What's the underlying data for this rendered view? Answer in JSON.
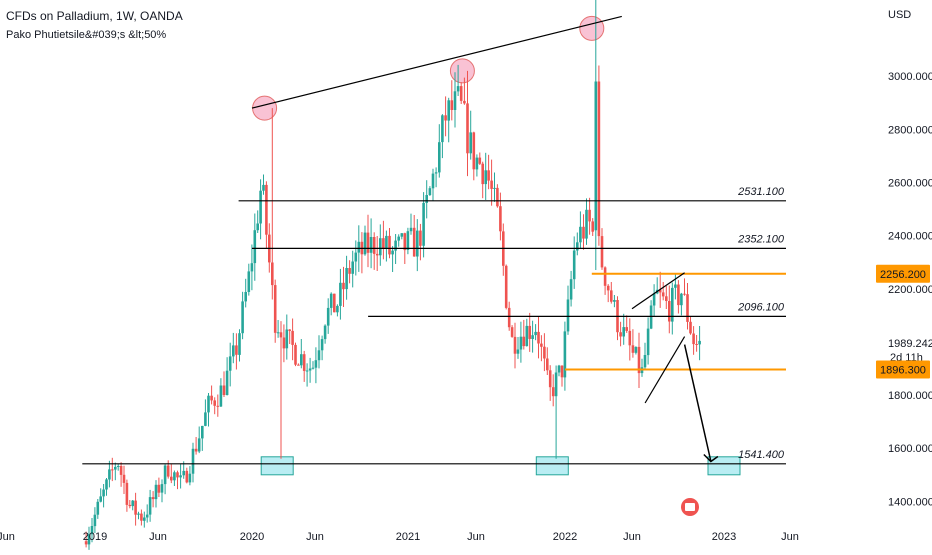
{
  "header": {
    "title": "CFDs on Palladium, 1W, OANDA",
    "subtitle": "Pako Phutietsile&#039;s &lt;50%"
  },
  "price_axis": {
    "currency": "USD",
    "ticks": [
      "3000.000",
      "2800.000",
      "2600.000",
      "2400.000",
      "2200.000",
      "1800.000",
      "1600.000",
      "1400.000"
    ],
    "tick_values": [
      3000,
      2800,
      2600,
      2400,
      2200,
      1800,
      1600,
      1400
    ],
    "current_price": "1989.242",
    "countdown": "2d 11h",
    "badges": [
      {
        "label": "2256.200",
        "value": 2256.2,
        "color": "#ff9800"
      },
      {
        "label": "1896.300",
        "value": 1896.3,
        "color": "#ff9800"
      }
    ]
  },
  "time_axis": {
    "labels": [
      "Jun",
      "2019",
      "Jun",
      "2020",
      "Jun",
      "2021",
      "Jun",
      "2022",
      "Jun",
      "2023",
      "Jun"
    ],
    "dates": [
      "2018-06",
      "2019-01",
      "2019-06",
      "2020-01",
      "2020-06",
      "2021-01",
      "2021-06",
      "2022-01",
      "2022-06",
      "2023-01",
      "2023-06"
    ]
  },
  "levels": [
    {
      "label": "2531.100",
      "value": 2531.1,
      "color": "#000000",
      "from": "2019-12",
      "to": "2023-06"
    },
    {
      "label": "2352.100",
      "value": 2352.1,
      "color": "#000000",
      "from": "2020-01",
      "to": "2023-06"
    },
    {
      "label": "2096.100",
      "value": 2096.1,
      "color": "#000000",
      "from": "2020-10",
      "to": "2023-06"
    },
    {
      "label": "1541.400",
      "value": 1541.4,
      "color": "#000000",
      "from": "2018-12",
      "to": "2023-06"
    },
    {
      "label": "",
      "value": 2256.2,
      "color": "#ff9800",
      "from": "2022-03",
      "to": "2023-06"
    },
    {
      "label": "",
      "value": 1896.3,
      "color": "#ff9800",
      "from": "2022-01",
      "to": "2023-06"
    }
  ],
  "colors": {
    "up": "#26a69a",
    "down": "#ef5350",
    "annotation": "#000000",
    "highlight_circle": "#f48fb1",
    "support_box": "#80deea",
    "axis_text": "#131722",
    "badge": "#ff9800"
  },
  "chart_data": {
    "type": "candlestick",
    "title": "CFDs on Palladium, 1W, OANDA",
    "interval": "1W",
    "currency": "USD",
    "ylim": [
      1360,
      3380
    ],
    "xlim": [
      "2018-06",
      "2023-07"
    ],
    "trendline_resistance": [
      {
        "date": "2020-01",
        "price": 2880
      },
      {
        "date": "2021-05",
        "price": 3040
      },
      {
        "date": "2022-03",
        "price": 3210
      }
    ],
    "rising_wedge": {
      "upper": [
        {
          "date": "2022-06",
          "price": 2125
        },
        {
          "date": "2022-10",
          "price": 2260
        }
      ],
      "lower": [
        {
          "date": "2022-07",
          "price": 1770
        },
        {
          "date": "2022-10",
          "price": 2020
        }
      ]
    },
    "projection": [
      {
        "date": "2022-10",
        "price": 1990
      },
      {
        "date": "2022-12",
        "price": 1550
      }
    ],
    "swing_highs": [
      {
        "date": "2020-02",
        "price": 2880
      },
      {
        "date": "2021-05",
        "price": 3020
      },
      {
        "date": "2022-03",
        "price": 3180
      }
    ],
    "support_zones": [
      {
        "date": "2020-03",
        "price": 1545
      },
      {
        "date": "2021-12",
        "price": 1545
      },
      {
        "date": "2023-01",
        "price": 1545
      }
    ],
    "price_path": [
      [
        "2018-12",
        1220
      ],
      [
        "2019-01",
        1320
      ],
      [
        "2019-02",
        1440
      ],
      [
        "2019-03",
        1560
      ],
      [
        "2019-04",
        1380
      ],
      [
        "2019-05",
        1340
      ],
      [
        "2019-06",
        1420
      ],
      [
        "2019-07",
        1530
      ],
      [
        "2019-08",
        1460
      ],
      [
        "2019-09",
        1600
      ],
      [
        "2019-10",
        1760
      ],
      [
        "2019-11",
        1820
      ],
      [
        "2019-12",
        1960
      ],
      [
        "2020-01",
        2240
      ],
      [
        "2020-02",
        2600
      ],
      [
        "2020-03",
        2100
      ],
      [
        "2020-04",
        2000
      ],
      [
        "2020-05",
        1950
      ],
      [
        "2020-06",
        1900
      ],
      [
        "2020-07",
        2100
      ],
      [
        "2020-08",
        2150
      ],
      [
        "2020-09",
        2300
      ],
      [
        "2020-10",
        2350
      ],
      [
        "2020-11",
        2380
      ],
      [
        "2020-12",
        2330
      ],
      [
        "2021-01",
        2360
      ],
      [
        "2021-02",
        2380
      ],
      [
        "2021-03",
        2600
      ],
      [
        "2021-04",
        2850
      ],
      [
        "2021-05",
        2900
      ],
      [
        "2021-06",
        2700
      ],
      [
        "2021-07",
        2650
      ],
      [
        "2021-08",
        2450
      ],
      [
        "2021-09",
        2000
      ],
      [
        "2021-10",
        2040
      ],
      [
        "2021-11",
        2060
      ],
      [
        "2021-12",
        1800
      ],
      [
        "2022-01",
        1900
      ],
      [
        "2022-02",
        2380
      ],
      [
        "2022-03",
        2450
      ],
      [
        "2022-04",
        2300
      ],
      [
        "2022-05",
        2100
      ],
      [
        "2022-06",
        1980
      ],
      [
        "2022-07",
        1880
      ],
      [
        "2022-08",
        2180
      ],
      [
        "2022-09",
        2130
      ],
      [
        "2022-10",
        2190
      ],
      [
        "2022-11",
        1990
      ]
    ]
  }
}
